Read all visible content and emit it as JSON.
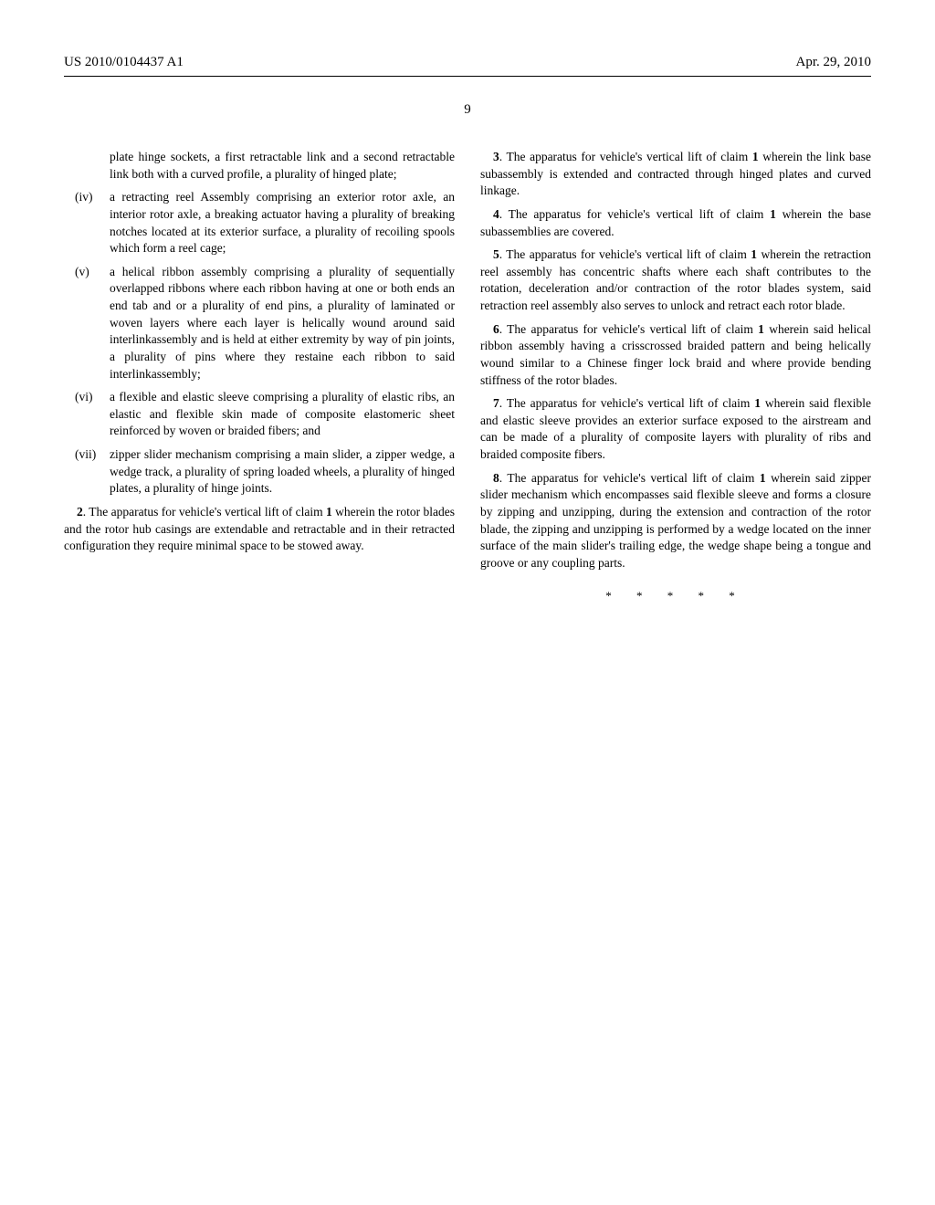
{
  "header": {
    "pub_number": "US 2010/0104437 A1",
    "pub_date": "Apr. 29, 2010"
  },
  "page_number": "9",
  "left_col": {
    "sub_items": [
      {
        "marker": "",
        "text": "plate hinge sockets, a first retractable link and a second retractable link both with a curved profile, a plurality of hinged plate;"
      },
      {
        "marker": "(iv)",
        "text": "a retracting reel Assembly comprising an exterior rotor axle, an interior rotor axle, a breaking actuator having a plurality of breaking notches located at its exterior surface, a plurality of recoiling spools which form a reel cage;"
      },
      {
        "marker": "(v)",
        "text": "a helical ribbon assembly comprising a plurality of sequentially overlapped ribbons where each ribbon having at one or both ends an end tab and or a plurality of end pins, a plurality of laminated or woven layers where each layer is helically wound around said interlinkassembly and is held at either extremity by way of pin joints, a plurality of pins where they restaine each ribbon to said interlinkassembly;"
      },
      {
        "marker": "(vi)",
        "text": "a flexible and elastic sleeve comprising a plurality of elastic ribs, an elastic and flexible skin made of composite elastomeric sheet reinforced by woven or braided fibers; and"
      },
      {
        "marker": "(vii)",
        "text": "zipper slider mechanism comprising a main slider, a zipper wedge, a wedge track, a plurality of spring loaded wheels, a plurality of hinged plates, a plurality of hinge joints."
      }
    ],
    "claim2": "2. The apparatus for vehicle's vertical lift of claim 1 wherein the rotor blades and the rotor hub casings are extendable and retractable and in their retracted configuration they require minimal space to be stowed away."
  },
  "right_col": {
    "claim3": "3. The apparatus for vehicle's vertical lift of claim 1 wherein the link base subassembly is extended and contracted through hinged plates and curved linkage.",
    "claim4": "4. The apparatus for vehicle's vertical lift of claim 1 wherein the base subassemblies are covered.",
    "claim5": "5. The apparatus for vehicle's vertical lift of claim 1 wherein the retraction reel assembly has concentric shafts where each shaft contributes to the rotation, deceleration and/or contraction of the rotor blades system, said retraction reel assembly also serves to unlock and retract each rotor blade.",
    "claim6": "6. The apparatus for vehicle's vertical lift of claim 1 wherein said helical ribbon assembly having a crisscrossed braided pattern and being helically wound similar to a Chinese finger lock braid and where provide bending stiffness of the rotor blades.",
    "claim7": "7. The apparatus for vehicle's vertical lift of claim 1 wherein said flexible and elastic sleeve provides an exterior surface exposed to the airstream and can be made of a plurality of composite layers with plurality of ribs and braided composite fibers.",
    "claim8": "8. The apparatus for vehicle's vertical lift of claim 1 wherein said zipper slider mechanism which encompasses said flexible sleeve and forms a closure by zipping and unzipping, during the extension and contraction of the rotor blade, the zipping and unzipping is performed by a wedge located on the inner surface of the main slider's trailing edge, the wedge shape being a tongue and groove or any coupling parts.",
    "endmark": "* * * * *"
  }
}
